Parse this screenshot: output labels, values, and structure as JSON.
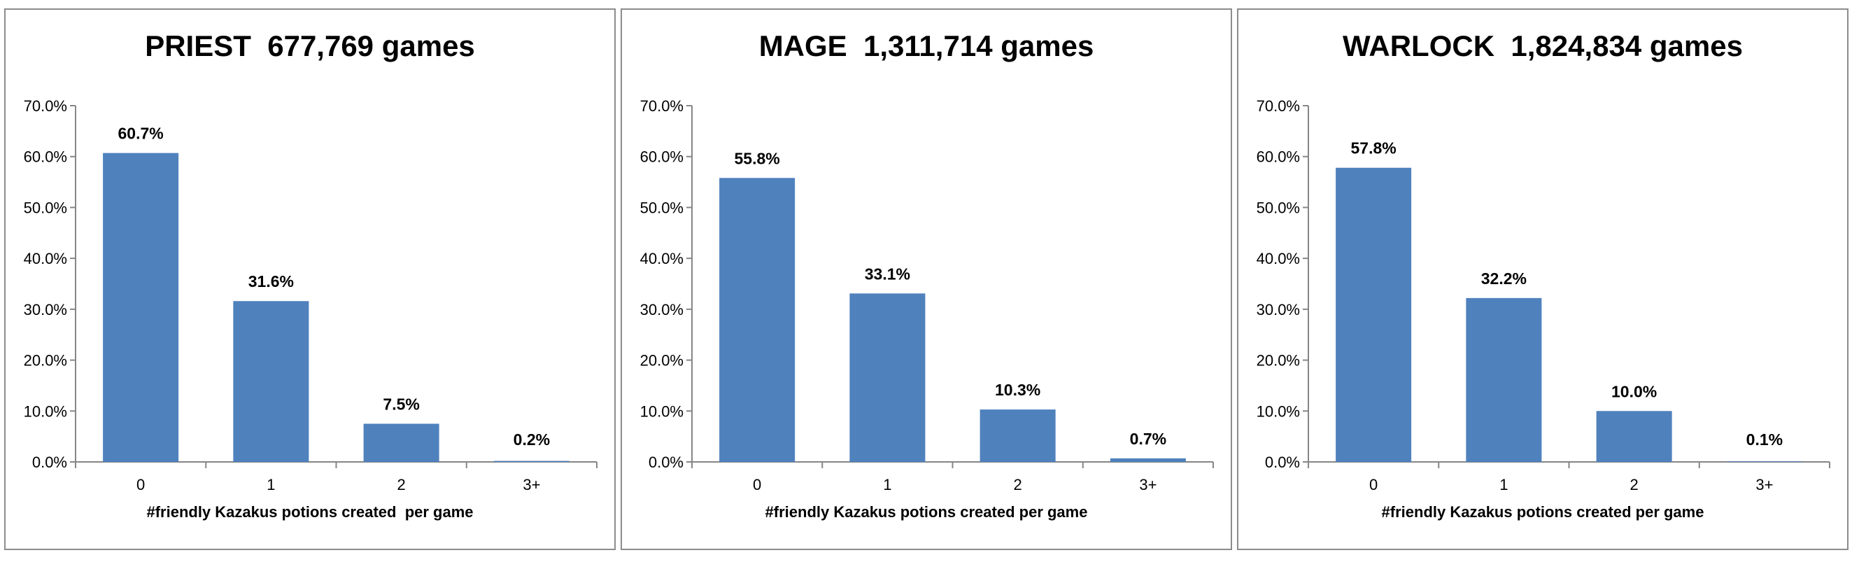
{
  "colors": {
    "bar": "#4f81bd",
    "axis": "#868686",
    "border": "#8c8c8c"
  },
  "chart_data": [
    {
      "type": "bar",
      "title": "PRIEST  677,769 games",
      "xlabel": "#friendly Kazakus potions created  per game",
      "ylabel": "",
      "categories": [
        "0",
        "1",
        "2",
        "3+"
      ],
      "values": [
        60.7,
        31.6,
        7.5,
        0.2
      ],
      "value_labels": [
        "60.7%",
        "31.6%",
        "7.5%",
        "0.2%"
      ],
      "ylim": [
        0,
        70
      ],
      "yticks": [
        0,
        10,
        20,
        30,
        40,
        50,
        60,
        70
      ],
      "ytick_labels": [
        "0.0%",
        "10.0%",
        "20.0%",
        "30.0%",
        "40.0%",
        "50.0%",
        "60.0%",
        "70.0%"
      ],
      "grid": false,
      "legend": "none"
    },
    {
      "type": "bar",
      "title": "MAGE  1,311,714 games",
      "xlabel": "#friendly Kazakus potions created per game",
      "ylabel": "",
      "categories": [
        "0",
        "1",
        "2",
        "3+"
      ],
      "values": [
        55.8,
        33.1,
        10.3,
        0.7
      ],
      "value_labels": [
        "55.8%",
        "33.1%",
        "10.3%",
        "0.7%"
      ],
      "ylim": [
        0,
        70
      ],
      "yticks": [
        0,
        10,
        20,
        30,
        40,
        50,
        60,
        70
      ],
      "ytick_labels": [
        "0.0%",
        "10.0%",
        "20.0%",
        "30.0%",
        "40.0%",
        "50.0%",
        "60.0%",
        "70.0%"
      ],
      "grid": false,
      "legend": "none"
    },
    {
      "type": "bar",
      "title": "WARLOCK  1,824,834 games",
      "xlabel": "#friendly Kazakus potions created per game",
      "ylabel": "",
      "categories": [
        "0",
        "1",
        "2",
        "3+"
      ],
      "values": [
        57.8,
        32.2,
        10.0,
        0.1
      ],
      "value_labels": [
        "57.8%",
        "32.2%",
        "10.0%",
        "0.1%"
      ],
      "ylim": [
        0,
        70
      ],
      "yticks": [
        0,
        10,
        20,
        30,
        40,
        50,
        60,
        70
      ],
      "ytick_labels": [
        "0.0%",
        "10.0%",
        "20.0%",
        "30.0%",
        "40.0%",
        "50.0%",
        "60.0%",
        "70.0%"
      ],
      "grid": false,
      "legend": "none"
    }
  ]
}
